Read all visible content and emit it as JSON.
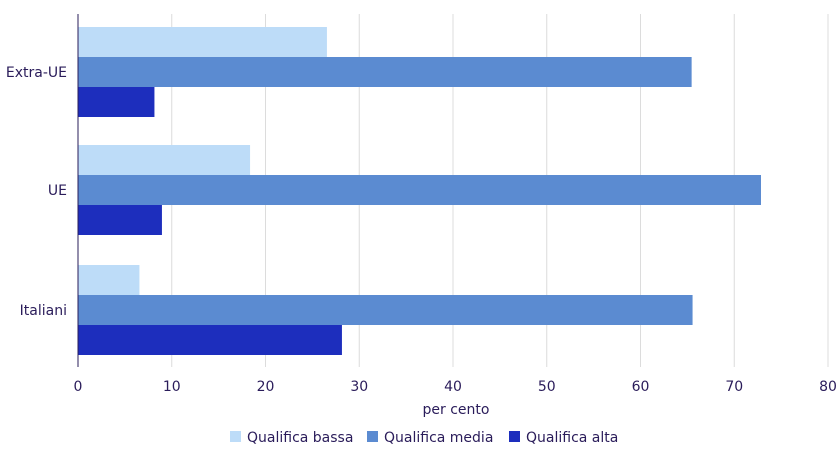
{
  "chart_data": {
    "type": "bar",
    "orientation": "horizontal",
    "categories": [
      "Extra-UE",
      "UE",
      "Italiani"
    ],
    "series": [
      {
        "name": "Qualifica bassa",
        "color": "#bddcf8",
        "values": [
          26.5,
          18.3,
          6.5
        ]
      },
      {
        "name": "Qualifica media",
        "color": "#5b8bd1",
        "values": [
          65.4,
          72.8,
          65.5
        ]
      },
      {
        "name": "Qualifica alta",
        "color": "#1d2ebd",
        "values": [
          8.1,
          8.9,
          28.1
        ]
      }
    ],
    "xlabel": "per cento",
    "ylabel": "",
    "xlim": [
      0,
      80
    ],
    "xticks": [
      "0",
      "10",
      "20",
      "30",
      "40",
      "50",
      "60",
      "70",
      "80"
    ],
    "grid": "vertical",
    "legend_position": "bottom-center"
  }
}
